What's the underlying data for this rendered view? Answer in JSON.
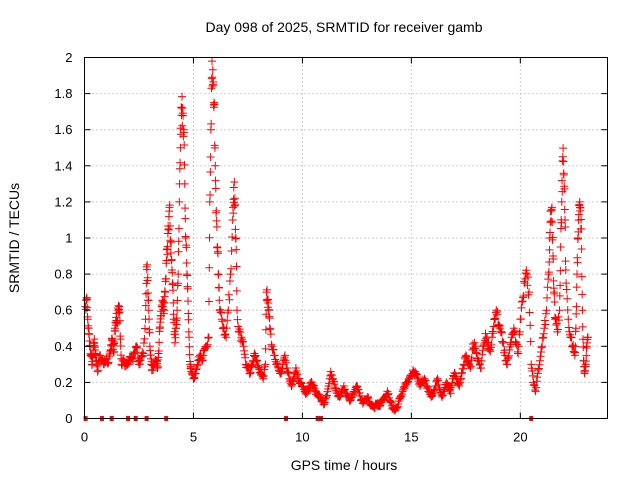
{
  "chart_data": {
    "type": "scatter",
    "title": "Day 098 of 2025, SRMTID for receiver gamb",
    "xlabel": "GPS time / hours",
    "ylabel": "SRMTID / TECUs",
    "xlim": [
      0,
      24
    ],
    "ylim": [
      0,
      2
    ],
    "xticks": [
      0,
      5,
      10,
      15,
      20
    ],
    "xtick_labels": [
      "0",
      "5",
      "10",
      "15",
      "20"
    ],
    "yticks": [
      0,
      0.2,
      0.4,
      0.6,
      0.8,
      1,
      1.2,
      1.4,
      1.6,
      1.8,
      2
    ],
    "ytick_labels": [
      "0",
      "0.2",
      "0.4",
      "0.6",
      "0.8",
      "1",
      "1.2",
      "1.4",
      "1.6",
      "1.8",
      "2"
    ],
    "grid": true,
    "marker": "+",
    "color": "#ff0000",
    "series": [
      {
        "name": "SRMTID",
        "points": [
          [
            0.05,
            0.62
          ],
          [
            0.1,
            0.67
          ],
          [
            0.15,
            0.55
          ],
          [
            0.2,
            0.47
          ],
          [
            0.25,
            0.4
          ],
          [
            0.3,
            0.35
          ],
          [
            0.35,
            0.3
          ],
          [
            0.4,
            0.38
          ],
          [
            0.45,
            0.44
          ],
          [
            0.5,
            0.36
          ],
          [
            0.55,
            0.32
          ],
          [
            0.6,
            0.26
          ],
          [
            0.7,
            0.35
          ],
          [
            0.8,
            0.33
          ],
          [
            0.9,
            0.3
          ],
          [
            1.0,
            0.33
          ],
          [
            1.1,
            0.31
          ],
          [
            1.2,
            0.38
          ],
          [
            1.25,
            0.44
          ],
          [
            1.3,
            0.41
          ],
          [
            1.35,
            0.37
          ],
          [
            1.4,
            0.5
          ],
          [
            1.45,
            0.56
          ],
          [
            1.5,
            0.54
          ],
          [
            1.55,
            0.6
          ],
          [
            1.6,
            0.62
          ],
          [
            1.65,
            0.44
          ],
          [
            1.7,
            0.3
          ],
          [
            1.8,
            0.32
          ],
          [
            1.9,
            0.29
          ],
          [
            2.0,
            0.3
          ],
          [
            2.1,
            0.34
          ],
          [
            2.2,
            0.33
          ],
          [
            2.3,
            0.36
          ],
          [
            2.4,
            0.4
          ],
          [
            2.5,
            0.3
          ],
          [
            2.6,
            0.34
          ],
          [
            2.7,
            0.36
          ],
          [
            2.8,
            0.55
          ],
          [
            2.85,
            0.84
          ],
          [
            2.9,
            0.78
          ],
          [
            2.95,
            0.6
          ],
          [
            3.0,
            0.4
          ],
          [
            3.05,
            0.33
          ],
          [
            3.1,
            0.27
          ],
          [
            3.2,
            0.3
          ],
          [
            3.3,
            0.32
          ],
          [
            3.35,
            0.28
          ],
          [
            3.4,
            0.36
          ],
          [
            3.45,
            0.5
          ],
          [
            3.5,
            0.57
          ],
          [
            3.55,
            0.62
          ],
          [
            3.6,
            0.65
          ],
          [
            3.65,
            0.6
          ],
          [
            3.7,
            0.7
          ],
          [
            3.75,
            0.86
          ],
          [
            3.8,
            0.91
          ],
          [
            3.85,
            1.05
          ],
          [
            3.9,
            1.17
          ],
          [
            3.95,
            0.98
          ],
          [
            4.0,
            0.88
          ],
          [
            4.05,
            0.75
          ],
          [
            4.1,
            0.55
          ],
          [
            4.15,
            0.42
          ],
          [
            4.2,
            0.5
          ],
          [
            4.25,
            0.6
          ],
          [
            4.3,
            0.8
          ],
          [
            4.35,
            1.2
          ],
          [
            4.4,
            1.5
          ],
          [
            4.45,
            1.68
          ],
          [
            4.5,
            1.72
          ],
          [
            4.55,
            1.6
          ],
          [
            4.6,
            1.3
          ],
          [
            4.65,
            1.0
          ],
          [
            4.7,
            0.8
          ],
          [
            4.75,
            0.65
          ],
          [
            4.8,
            0.45
          ],
          [
            4.85,
            0.3
          ],
          [
            4.9,
            0.26
          ],
          [
            5.0,
            0.22
          ],
          [
            5.1,
            0.25
          ],
          [
            5.2,
            0.3
          ],
          [
            5.3,
            0.35
          ],
          [
            5.4,
            0.32
          ],
          [
            5.5,
            0.38
          ],
          [
            5.6,
            0.4
          ],
          [
            5.7,
            0.45
          ],
          [
            5.75,
            1.2
          ],
          [
            5.8,
            1.6
          ],
          [
            5.85,
            1.98
          ],
          [
            5.9,
            1.85
          ],
          [
            5.95,
            1.75
          ],
          [
            6.0,
            1.4
          ],
          [
            6.05,
            1.15
          ],
          [
            6.1,
            0.95
          ],
          [
            6.15,
            0.8
          ],
          [
            6.2,
            0.6
          ],
          [
            6.3,
            0.55
          ],
          [
            6.4,
            0.5
          ],
          [
            6.5,
            0.45
          ],
          [
            6.6,
            0.6
          ],
          [
            6.7,
            0.8
          ],
          [
            6.8,
            1.1
          ],
          [
            6.85,
            1.28
          ],
          [
            6.9,
            1.22
          ],
          [
            6.95,
            1.0
          ],
          [
            7.0,
            0.6
          ],
          [
            7.1,
            0.48
          ],
          [
            7.2,
            0.45
          ],
          [
            7.3,
            0.4
          ],
          [
            7.4,
            0.3
          ],
          [
            7.5,
            0.28
          ],
          [
            7.6,
            0.25
          ],
          [
            7.7,
            0.3
          ],
          [
            7.8,
            0.36
          ],
          [
            7.9,
            0.32
          ],
          [
            8.0,
            0.28
          ],
          [
            8.1,
            0.24
          ],
          [
            8.2,
            0.22
          ],
          [
            8.3,
            0.3
          ],
          [
            8.35,
            0.7
          ],
          [
            8.4,
            0.66
          ],
          [
            8.45,
            0.6
          ],
          [
            8.5,
            0.5
          ],
          [
            8.6,
            0.4
          ],
          [
            8.7,
            0.35
          ],
          [
            8.8,
            0.3
          ],
          [
            8.9,
            0.28
          ],
          [
            9.0,
            0.25
          ],
          [
            9.1,
            0.3
          ],
          [
            9.2,
            0.35
          ],
          [
            9.3,
            0.28
          ],
          [
            9.4,
            0.22
          ],
          [
            9.5,
            0.18
          ],
          [
            9.6,
            0.22
          ],
          [
            9.7,
            0.28
          ],
          [
            9.8,
            0.22
          ],
          [
            9.9,
            0.2
          ],
          [
            10.0,
            0.18
          ],
          [
            10.1,
            0.15
          ],
          [
            10.2,
            0.14
          ],
          [
            10.3,
            0.17
          ],
          [
            10.4,
            0.2
          ],
          [
            10.5,
            0.18
          ],
          [
            10.6,
            0.15
          ],
          [
            10.7,
            0.13
          ],
          [
            10.8,
            0.12
          ],
          [
            10.9,
            0.1
          ],
          [
            11.0,
            0.08
          ],
          [
            11.1,
            0.12
          ],
          [
            11.2,
            0.18
          ],
          [
            11.3,
            0.26
          ],
          [
            11.4,
            0.22
          ],
          [
            11.5,
            0.17
          ],
          [
            11.6,
            0.14
          ],
          [
            11.7,
            0.12
          ],
          [
            11.8,
            0.15
          ],
          [
            11.9,
            0.18
          ],
          [
            12.0,
            0.14
          ],
          [
            12.1,
            0.12
          ],
          [
            12.2,
            0.1
          ],
          [
            12.3,
            0.13
          ],
          [
            12.4,
            0.15
          ],
          [
            12.5,
            0.18
          ],
          [
            12.6,
            0.14
          ],
          [
            12.7,
            0.1
          ],
          [
            12.8,
            0.09
          ],
          [
            12.9,
            0.1
          ],
          [
            13.0,
            0.12
          ],
          [
            13.1,
            0.08
          ],
          [
            13.2,
            0.07
          ],
          [
            13.3,
            0.06
          ],
          [
            13.4,
            0.08
          ],
          [
            13.5,
            0.07
          ],
          [
            13.6,
            0.09
          ],
          [
            13.7,
            0.1
          ],
          [
            13.8,
            0.12
          ],
          [
            13.9,
            0.15
          ],
          [
            14.0,
            0.1
          ],
          [
            14.1,
            0.07
          ],
          [
            14.2,
            0.05
          ],
          [
            14.3,
            0.06
          ],
          [
            14.4,
            0.08
          ],
          [
            14.5,
            0.12
          ],
          [
            14.6,
            0.15
          ],
          [
            14.7,
            0.18
          ],
          [
            14.8,
            0.2
          ],
          [
            14.9,
            0.22
          ],
          [
            15.0,
            0.24
          ],
          [
            15.1,
            0.26
          ],
          [
            15.2,
            0.25
          ],
          [
            15.3,
            0.22
          ],
          [
            15.4,
            0.18
          ],
          [
            15.5,
            0.2
          ],
          [
            15.6,
            0.22
          ],
          [
            15.7,
            0.18
          ],
          [
            15.8,
            0.15
          ],
          [
            15.9,
            0.12
          ],
          [
            16.0,
            0.14
          ],
          [
            16.1,
            0.18
          ],
          [
            16.2,
            0.22
          ],
          [
            16.3,
            0.16
          ],
          [
            16.4,
            0.12
          ],
          [
            16.5,
            0.15
          ],
          [
            16.6,
            0.2
          ],
          [
            16.7,
            0.18
          ],
          [
            16.8,
            0.14
          ],
          [
            16.9,
            0.22
          ],
          [
            17.0,
            0.25
          ],
          [
            17.1,
            0.2
          ],
          [
            17.2,
            0.18
          ],
          [
            17.3,
            0.25
          ],
          [
            17.4,
            0.3
          ],
          [
            17.5,
            0.35
          ],
          [
            17.6,
            0.32
          ],
          [
            17.7,
            0.28
          ],
          [
            17.8,
            0.38
          ],
          [
            17.9,
            0.42
          ],
          [
            18.0,
            0.36
          ],
          [
            18.1,
            0.32
          ],
          [
            18.2,
            0.28
          ],
          [
            18.3,
            0.4
          ],
          [
            18.4,
            0.47
          ],
          [
            18.5,
            0.42
          ],
          [
            18.6,
            0.38
          ],
          [
            18.7,
            0.45
          ],
          [
            18.8,
            0.55
          ],
          [
            18.9,
            0.6
          ],
          [
            19.0,
            0.52
          ],
          [
            19.1,
            0.48
          ],
          [
            19.2,
            0.42
          ],
          [
            19.3,
            0.35
          ],
          [
            19.4,
            0.3
          ],
          [
            19.5,
            0.38
          ],
          [
            19.6,
            0.45
          ],
          [
            19.7,
            0.5
          ],
          [
            19.8,
            0.42
          ],
          [
            19.9,
            0.36
          ],
          [
            20.0,
            0.55
          ],
          [
            20.1,
            0.65
          ],
          [
            20.2,
            0.75
          ],
          [
            20.3,
            0.8
          ],
          [
            20.4,
            0.7
          ],
          [
            20.5,
            0.3
          ],
          [
            20.6,
            0.2
          ],
          [
            20.7,
            0.15
          ],
          [
            20.8,
            0.25
          ],
          [
            20.9,
            0.32
          ],
          [
            21.0,
            0.4
          ],
          [
            21.1,
            0.5
          ],
          [
            21.2,
            0.6
          ],
          [
            21.3,
            0.8
          ],
          [
            21.35,
            1.0
          ],
          [
            21.4,
            1.15
          ],
          [
            21.45,
            1.17
          ],
          [
            21.5,
            0.9
          ],
          [
            21.55,
            0.7
          ],
          [
            21.6,
            0.55
          ],
          [
            21.7,
            0.48
          ],
          [
            21.8,
            0.6
          ],
          [
            21.85,
            0.95
          ],
          [
            21.9,
            1.2
          ],
          [
            21.95,
            1.45
          ],
          [
            22.0,
            1.35
          ],
          [
            22.05,
            1.1
          ],
          [
            22.1,
            0.75
          ],
          [
            22.2,
            0.55
          ],
          [
            22.3,
            0.45
          ],
          [
            22.4,
            0.4
          ],
          [
            22.5,
            0.35
          ],
          [
            22.55,
            0.5
          ],
          [
            22.6,
            0.8
          ],
          [
            22.65,
            1.0
          ],
          [
            22.7,
            1.18
          ],
          [
            22.75,
            1.15
          ],
          [
            22.8,
            1.05
          ],
          [
            22.85,
            0.6
          ],
          [
            22.9,
            0.32
          ],
          [
            22.95,
            0.25
          ],
          [
            23.0,
            0.3
          ],
          [
            23.05,
            0.4
          ],
          [
            23.1,
            0.45
          ]
        ]
      }
    ],
    "zero_markers_x": [
      0.05,
      0.8,
      1.25,
      2.0,
      2.35,
      2.85,
      3.75,
      9.25,
      10.7,
      10.85,
      20.5
    ]
  }
}
